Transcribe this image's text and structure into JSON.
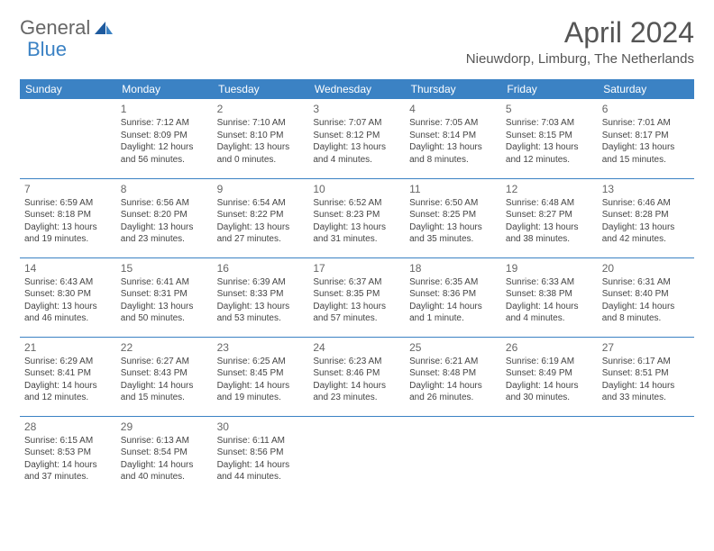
{
  "logo": {
    "text1": "General",
    "text2": "Blue",
    "icon_color": "#3b82c4"
  },
  "title": "April 2024",
  "location": "Nieuwdorp, Limburg, The Netherlands",
  "header_bg": "#3b82c4",
  "header_text_color": "#ffffff",
  "border_color": "#3b82c4",
  "day_headers": [
    "Sunday",
    "Monday",
    "Tuesday",
    "Wednesday",
    "Thursday",
    "Friday",
    "Saturday"
  ],
  "weeks": [
    [
      null,
      {
        "n": "1",
        "sr": "Sunrise: 7:12 AM",
        "ss": "Sunset: 8:09 PM",
        "d1": "Daylight: 12 hours",
        "d2": "and 56 minutes."
      },
      {
        "n": "2",
        "sr": "Sunrise: 7:10 AM",
        "ss": "Sunset: 8:10 PM",
        "d1": "Daylight: 13 hours",
        "d2": "and 0 minutes."
      },
      {
        "n": "3",
        "sr": "Sunrise: 7:07 AM",
        "ss": "Sunset: 8:12 PM",
        "d1": "Daylight: 13 hours",
        "d2": "and 4 minutes."
      },
      {
        "n": "4",
        "sr": "Sunrise: 7:05 AM",
        "ss": "Sunset: 8:14 PM",
        "d1": "Daylight: 13 hours",
        "d2": "and 8 minutes."
      },
      {
        "n": "5",
        "sr": "Sunrise: 7:03 AM",
        "ss": "Sunset: 8:15 PM",
        "d1": "Daylight: 13 hours",
        "d2": "and 12 minutes."
      },
      {
        "n": "6",
        "sr": "Sunrise: 7:01 AM",
        "ss": "Sunset: 8:17 PM",
        "d1": "Daylight: 13 hours",
        "d2": "and 15 minutes."
      }
    ],
    [
      {
        "n": "7",
        "sr": "Sunrise: 6:59 AM",
        "ss": "Sunset: 8:18 PM",
        "d1": "Daylight: 13 hours",
        "d2": "and 19 minutes."
      },
      {
        "n": "8",
        "sr": "Sunrise: 6:56 AM",
        "ss": "Sunset: 8:20 PM",
        "d1": "Daylight: 13 hours",
        "d2": "and 23 minutes."
      },
      {
        "n": "9",
        "sr": "Sunrise: 6:54 AM",
        "ss": "Sunset: 8:22 PM",
        "d1": "Daylight: 13 hours",
        "d2": "and 27 minutes."
      },
      {
        "n": "10",
        "sr": "Sunrise: 6:52 AM",
        "ss": "Sunset: 8:23 PM",
        "d1": "Daylight: 13 hours",
        "d2": "and 31 minutes."
      },
      {
        "n": "11",
        "sr": "Sunrise: 6:50 AM",
        "ss": "Sunset: 8:25 PM",
        "d1": "Daylight: 13 hours",
        "d2": "and 35 minutes."
      },
      {
        "n": "12",
        "sr": "Sunrise: 6:48 AM",
        "ss": "Sunset: 8:27 PM",
        "d1": "Daylight: 13 hours",
        "d2": "and 38 minutes."
      },
      {
        "n": "13",
        "sr": "Sunrise: 6:46 AM",
        "ss": "Sunset: 8:28 PM",
        "d1": "Daylight: 13 hours",
        "d2": "and 42 minutes."
      }
    ],
    [
      {
        "n": "14",
        "sr": "Sunrise: 6:43 AM",
        "ss": "Sunset: 8:30 PM",
        "d1": "Daylight: 13 hours",
        "d2": "and 46 minutes."
      },
      {
        "n": "15",
        "sr": "Sunrise: 6:41 AM",
        "ss": "Sunset: 8:31 PM",
        "d1": "Daylight: 13 hours",
        "d2": "and 50 minutes."
      },
      {
        "n": "16",
        "sr": "Sunrise: 6:39 AM",
        "ss": "Sunset: 8:33 PM",
        "d1": "Daylight: 13 hours",
        "d2": "and 53 minutes."
      },
      {
        "n": "17",
        "sr": "Sunrise: 6:37 AM",
        "ss": "Sunset: 8:35 PM",
        "d1": "Daylight: 13 hours",
        "d2": "and 57 minutes."
      },
      {
        "n": "18",
        "sr": "Sunrise: 6:35 AM",
        "ss": "Sunset: 8:36 PM",
        "d1": "Daylight: 14 hours",
        "d2": "and 1 minute."
      },
      {
        "n": "19",
        "sr": "Sunrise: 6:33 AM",
        "ss": "Sunset: 8:38 PM",
        "d1": "Daylight: 14 hours",
        "d2": "and 4 minutes."
      },
      {
        "n": "20",
        "sr": "Sunrise: 6:31 AM",
        "ss": "Sunset: 8:40 PM",
        "d1": "Daylight: 14 hours",
        "d2": "and 8 minutes."
      }
    ],
    [
      {
        "n": "21",
        "sr": "Sunrise: 6:29 AM",
        "ss": "Sunset: 8:41 PM",
        "d1": "Daylight: 14 hours",
        "d2": "and 12 minutes."
      },
      {
        "n": "22",
        "sr": "Sunrise: 6:27 AM",
        "ss": "Sunset: 8:43 PM",
        "d1": "Daylight: 14 hours",
        "d2": "and 15 minutes."
      },
      {
        "n": "23",
        "sr": "Sunrise: 6:25 AM",
        "ss": "Sunset: 8:45 PM",
        "d1": "Daylight: 14 hours",
        "d2": "and 19 minutes."
      },
      {
        "n": "24",
        "sr": "Sunrise: 6:23 AM",
        "ss": "Sunset: 8:46 PM",
        "d1": "Daylight: 14 hours",
        "d2": "and 23 minutes."
      },
      {
        "n": "25",
        "sr": "Sunrise: 6:21 AM",
        "ss": "Sunset: 8:48 PM",
        "d1": "Daylight: 14 hours",
        "d2": "and 26 minutes."
      },
      {
        "n": "26",
        "sr": "Sunrise: 6:19 AM",
        "ss": "Sunset: 8:49 PM",
        "d1": "Daylight: 14 hours",
        "d2": "and 30 minutes."
      },
      {
        "n": "27",
        "sr": "Sunrise: 6:17 AM",
        "ss": "Sunset: 8:51 PM",
        "d1": "Daylight: 14 hours",
        "d2": "and 33 minutes."
      }
    ],
    [
      {
        "n": "28",
        "sr": "Sunrise: 6:15 AM",
        "ss": "Sunset: 8:53 PM",
        "d1": "Daylight: 14 hours",
        "d2": "and 37 minutes."
      },
      {
        "n": "29",
        "sr": "Sunrise: 6:13 AM",
        "ss": "Sunset: 8:54 PM",
        "d1": "Daylight: 14 hours",
        "d2": "and 40 minutes."
      },
      {
        "n": "30",
        "sr": "Sunrise: 6:11 AM",
        "ss": "Sunset: 8:56 PM",
        "d1": "Daylight: 14 hours",
        "d2": "and 44 minutes."
      },
      null,
      null,
      null,
      null
    ]
  ]
}
